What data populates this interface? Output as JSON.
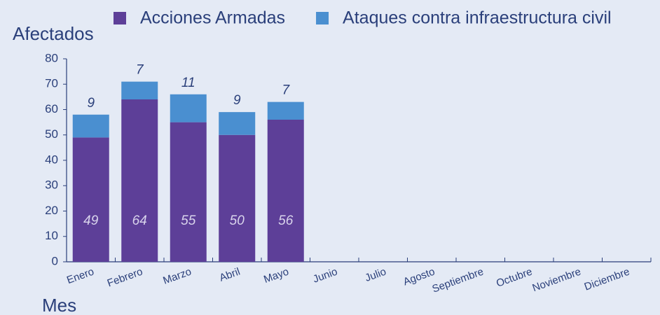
{
  "chart_data": {
    "type": "stacked_bar",
    "ylabel": "Afectados",
    "xlabel": "Mes",
    "categories": [
      "Enero",
      "Febrero",
      "Marzo",
      "Abril",
      "Mayo",
      "Junio",
      "Julio",
      "Agosto",
      "Septiembre",
      "Octubre",
      "Noviembre",
      "Diciembre"
    ],
    "series": [
      {
        "name": "Acciones Armadas",
        "color": "#5d3f98",
        "values": [
          49,
          64,
          55,
          50,
          56,
          null,
          null,
          null,
          null,
          null,
          null,
          null
        ]
      },
      {
        "name": "Ataques contra infraestructura civil",
        "color": "#4a8fd0",
        "values": [
          9,
          7,
          11,
          9,
          7,
          null,
          null,
          null,
          null,
          null,
          null,
          null
        ]
      }
    ],
    "ylim": [
      0,
      80
    ],
    "yticks": [
      0,
      10,
      20,
      30,
      40,
      50,
      60,
      70,
      80
    ],
    "legend": "top"
  }
}
